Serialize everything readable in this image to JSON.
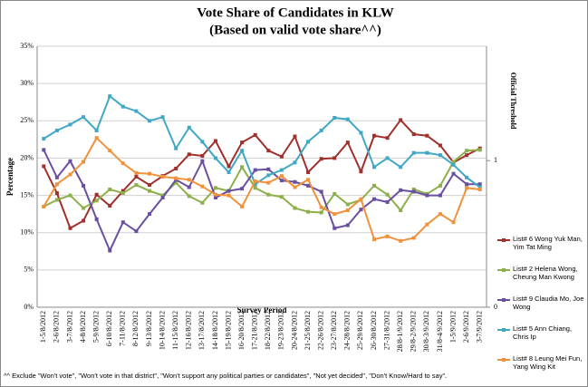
{
  "chart_data": {
    "type": "line",
    "title": "Vote Share of Candidates in KLW",
    "subtitle": "(Based on valid vote share^^)",
    "x_label": "Survey Period",
    "y_label": "Percentage",
    "y2_label": "Official Threshold",
    "footnote": "^^ Exclude \"Won't vote\", \"Won't vote in that district\", \"Won't support any political parties or candidates\", \"Not yet decided\", \"Don't Know/Hard to say\".",
    "categories": [
      "1-5/8/2012",
      "2-6/8/2012",
      "3-7/8/2012",
      "4-8/8/2012",
      "5-9/8/2012",
      "6-10/8/2012",
      "7-11/8/2012",
      "8-12/8/2012",
      "9-13/8/2012",
      "10-14/8/2012",
      "11-15/8/2012",
      "12-16/8/2012",
      "13-17/8/2012",
      "14-18/8/2012",
      "15-19/8/2012",
      "16-20/8/2012",
      "17-21/8/2012",
      "18-22/8/2012",
      "19-23/8/2012",
      "20-24/8/2012",
      "21-25/8/2012",
      "22-26/8/2012",
      "23-27/8/2012",
      "24-28/8/2012",
      "25-29/8/2012",
      "26-30/8/2012",
      "27-31/8/2012",
      "28/8-1/9/2012",
      "29/8-2/9/2012",
      "30/8-3/9/2012",
      "31/8-4/9/2012",
      "1-5/9/2012",
      "2-6/9/2012",
      "3-7/9/2012"
    ],
    "series": [
      {
        "name": "List# 6 Wong Yuk Man, Yim Tat Ming",
        "color": "#a0302c",
        "values": [
          18.9,
          15.3,
          10.6,
          11.6,
          15.1,
          13.6,
          15.6,
          17.5,
          16.4,
          17.6,
          18.6,
          20.5,
          20.3,
          22.3,
          18.9,
          22.1,
          23.1,
          21.0,
          20.2,
          22.9,
          18.1,
          19.9,
          20.0,
          22.1,
          18.2,
          23.0,
          22.7,
          25.1,
          23.2,
          23.0,
          21.7,
          19.4,
          20.4,
          21.3
        ]
      },
      {
        "name": "List# 2 Helena Wong, Cheung Man Kwong",
        "color": "#8cb04a",
        "values": [
          13.5,
          14.4,
          15.0,
          13.3,
          14.3,
          15.8,
          15.3,
          16.4,
          15.6,
          15.0,
          16.7,
          14.9,
          14.0,
          16.0,
          15.6,
          18.8,
          16.0,
          15.1,
          14.8,
          13.3,
          12.8,
          12.7,
          15.2,
          13.8,
          14.4,
          16.3,
          15.1,
          13.0,
          15.8,
          15.2,
          16.3,
          19.5,
          21.0,
          21.1
        ]
      },
      {
        "name": "List# 9 Claudia Mo, Joe Wong",
        "color": "#6a4fa0",
        "values": [
          21.1,
          17.4,
          19.6,
          16.3,
          11.8,
          7.6,
          11.4,
          10.2,
          12.5,
          14.7,
          17.1,
          16.1,
          19.6,
          14.7,
          15.6,
          15.9,
          18.4,
          18.5,
          17.0,
          16.8,
          16.3,
          15.5,
          10.6,
          11.0,
          13.1,
          14.5,
          14.1,
          15.7,
          15.5,
          15.0,
          15.0,
          17.9,
          16.5,
          16.5
        ]
      },
      {
        "name": "List# 5 Ann Chiang, Chris Ip",
        "color": "#40a8c4",
        "values": [
          22.6,
          23.7,
          24.5,
          25.5,
          23.7,
          28.3,
          26.9,
          26.3,
          25.0,
          25.5,
          21.3,
          24.1,
          22.2,
          20.0,
          18.1,
          21.0,
          16.5,
          17.7,
          18.4,
          19.4,
          22.2,
          23.7,
          25.4,
          25.2,
          23.4,
          18.8,
          20.0,
          18.8,
          20.7,
          20.7,
          20.4,
          19.1,
          17.4,
          16.1
        ]
      },
      {
        "name": "List# 8 Leung Mei Fun, Yang Wing Kit",
        "color": "#f0913c",
        "values": [
          13.5,
          16.5,
          17.8,
          19.5,
          22.7,
          21.0,
          19.3,
          18.0,
          17.9,
          17.5,
          17.3,
          17.1,
          16.2,
          15.1,
          15.0,
          13.5,
          16.9,
          16.7,
          17.6,
          16.1,
          17.1,
          13.4,
          12.5,
          13.0,
          14.5,
          9.1,
          9.5,
          8.9,
          9.3,
          11.1,
          12.5,
          11.4,
          16.0,
          15.8
        ]
      }
    ],
    "ylim": [
      0,
      35
    ],
    "yticks": [
      {
        "value": 0,
        "label": "0%"
      },
      {
        "value": 5,
        "label": "5%"
      },
      {
        "value": 10,
        "label": "10%"
      },
      {
        "value": 15,
        "label": "15%"
      },
      {
        "value": 20,
        "label": "20%"
      },
      {
        "value": 25,
        "label": "25%"
      },
      {
        "value": 30,
        "label": "30%"
      },
      {
        "value": 35,
        "label": "35%"
      }
    ],
    "y2lim": [
      0,
      1.78
    ],
    "y2ticks": [
      0,
      1
    ],
    "grid": true
  }
}
